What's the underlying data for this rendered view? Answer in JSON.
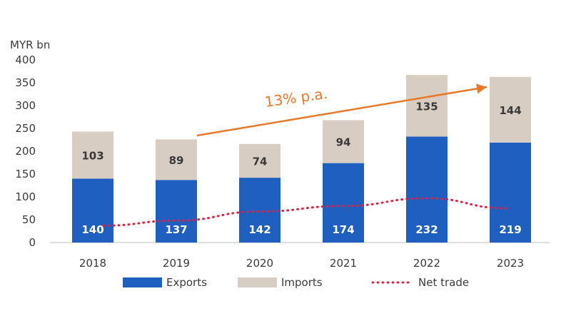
{
  "chart_data": {
    "type": "bar",
    "stacked": true,
    "ylabel": "MYR bn",
    "ylim": [
      0,
      400
    ],
    "yticks": [
      0,
      50,
      100,
      150,
      200,
      250,
      300,
      350,
      400
    ],
    "categories": [
      "2018",
      "2019",
      "2020",
      "2021",
      "2022",
      "2023"
    ],
    "series": [
      {
        "name": "Exports",
        "kind": "bar",
        "color": "#1f5fbf",
        "values": [
          140,
          137,
          142,
          174,
          232,
          219
        ]
      },
      {
        "name": "Imports",
        "kind": "bar",
        "color": "#d7cdc2",
        "values": [
          103,
          89,
          74,
          94,
          135,
          144
        ]
      },
      {
        "name": "Net trade",
        "kind": "line",
        "style": "dotted",
        "color": "#e02040",
        "values": [
          37,
          48,
          68,
          80,
          97,
          75
        ]
      }
    ],
    "annotation": {
      "text": "13% p.a.",
      "color": "#e8782a",
      "from": "2019",
      "to": "2023"
    },
    "legend": [
      "Exports",
      "Imports",
      "Net trade"
    ],
    "legend_position": "bottom"
  }
}
